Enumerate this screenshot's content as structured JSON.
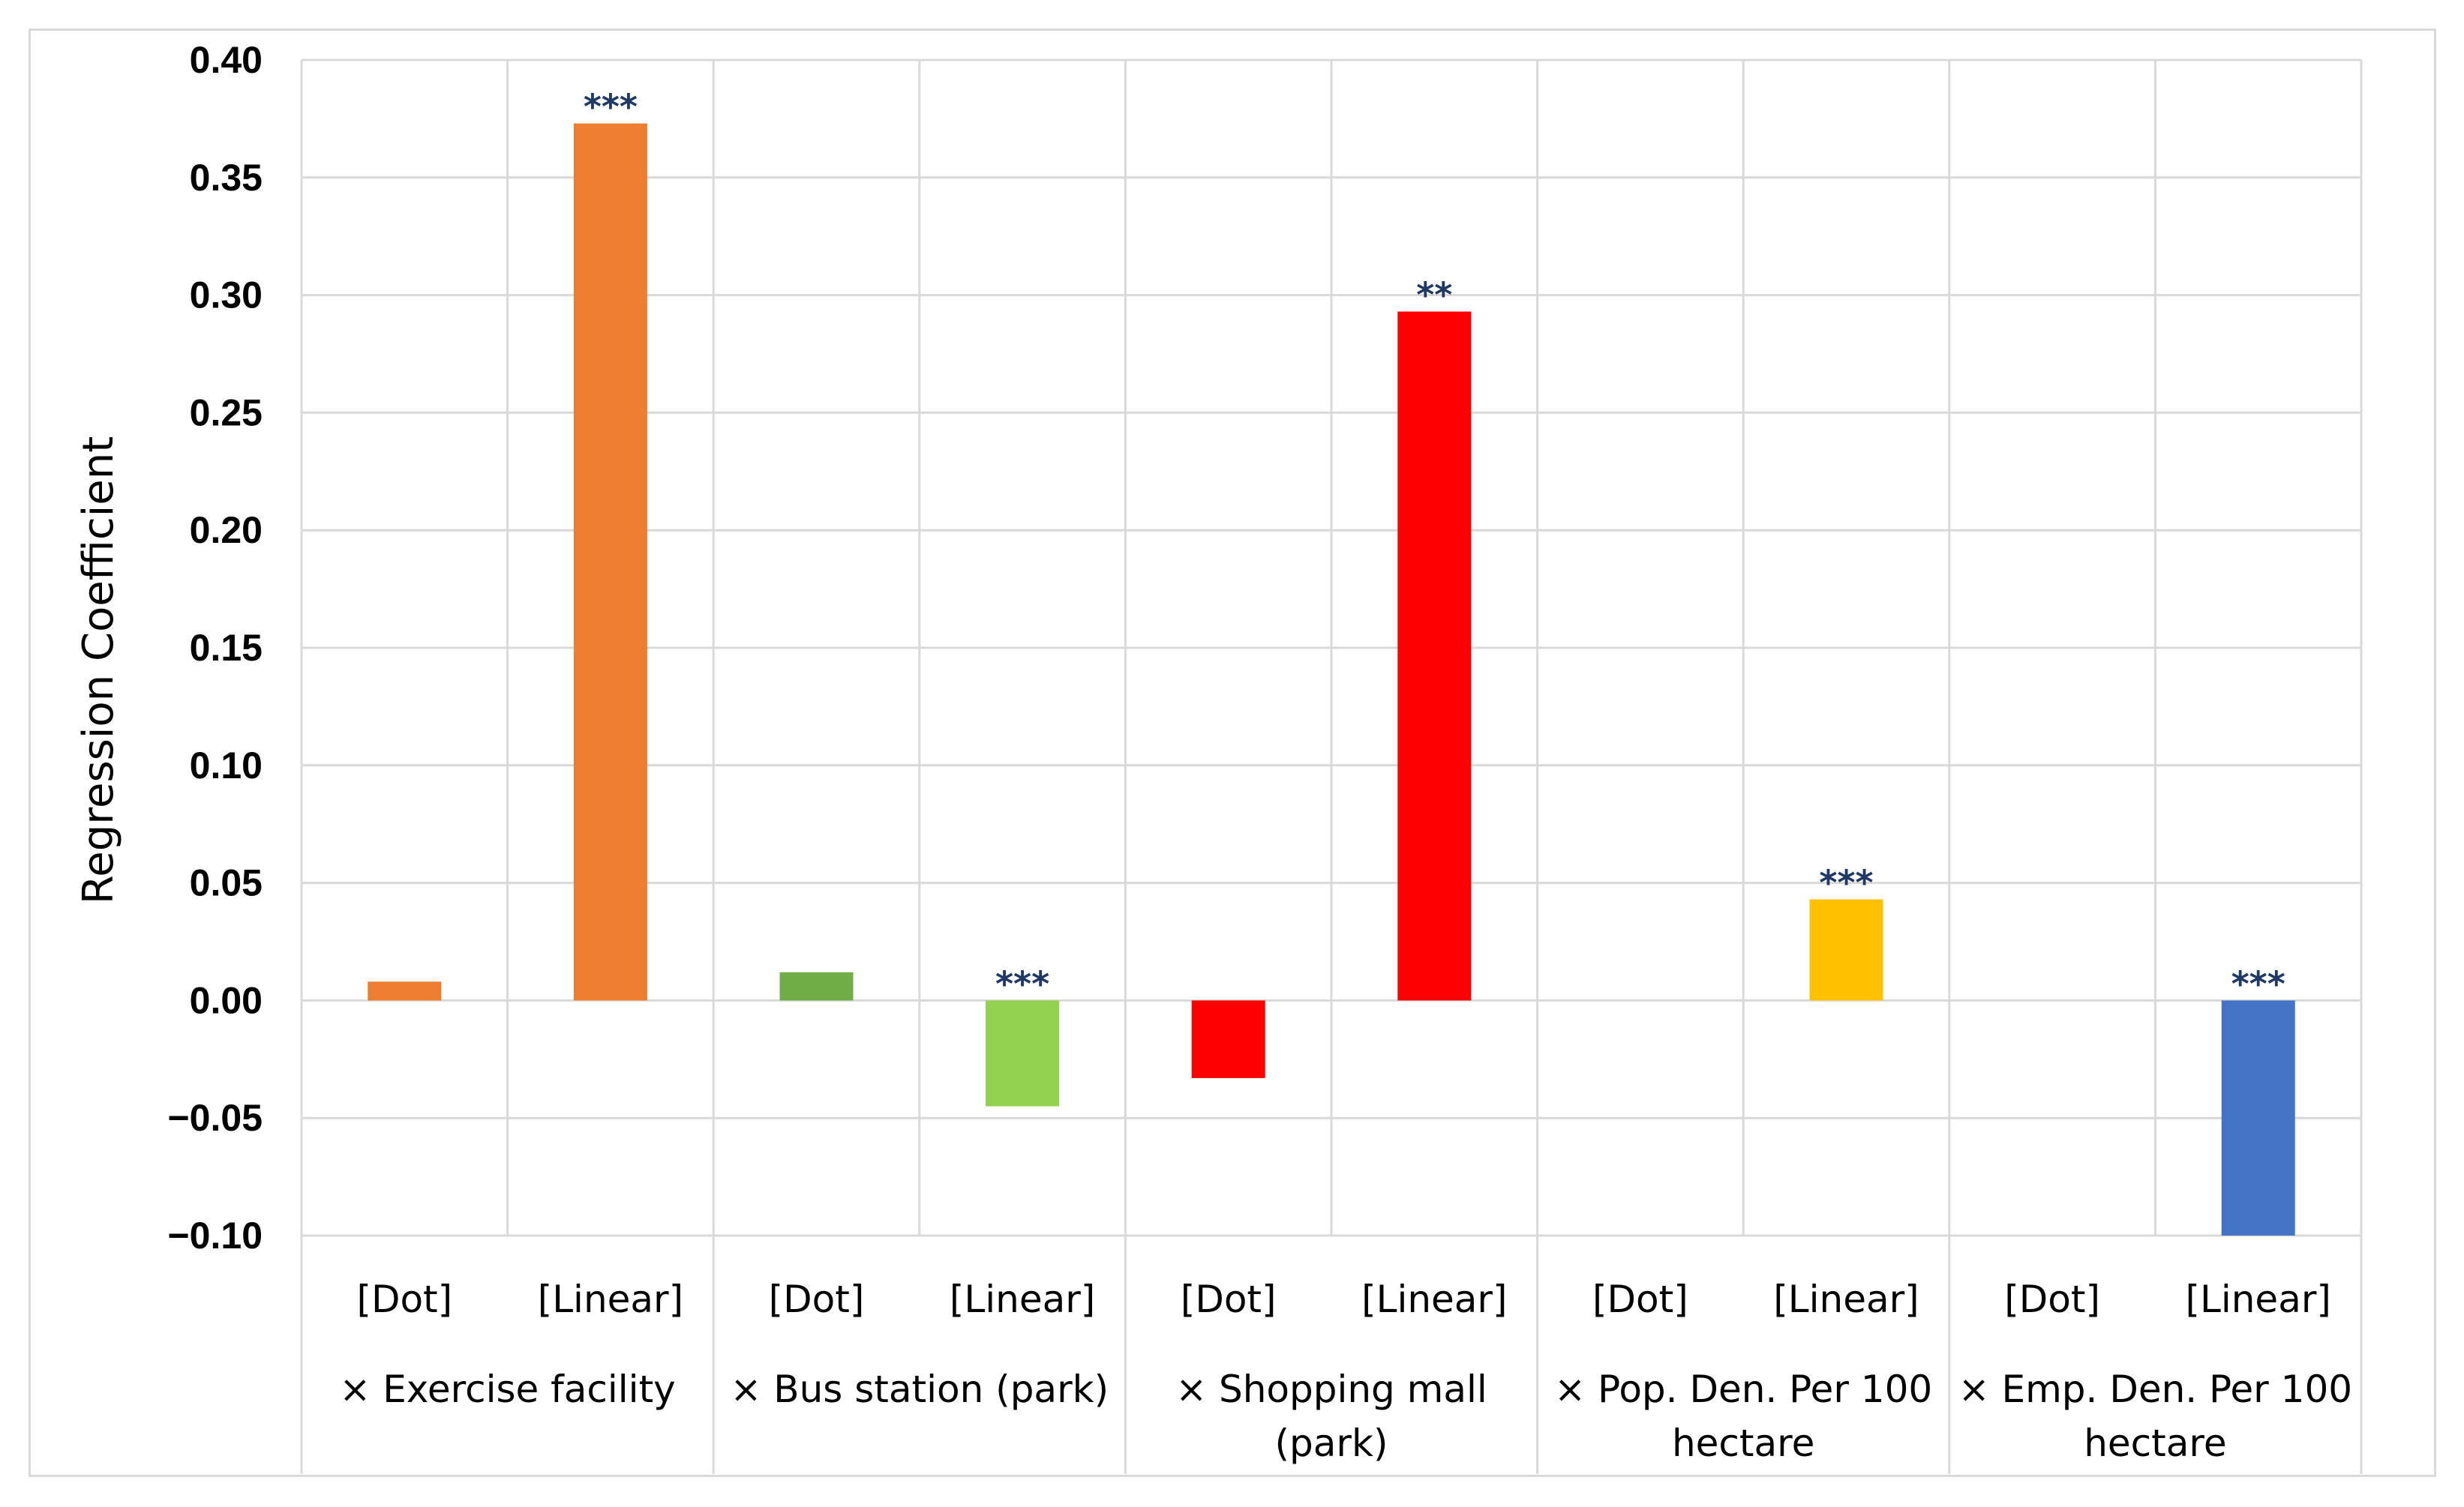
{
  "chart_data": {
    "type": "bar",
    "title": "",
    "ylabel": "Regression Coefficient",
    "xlabel": "",
    "ylim": [
      -0.1,
      0.4
    ],
    "yticks": [
      0.4,
      0.35,
      0.3,
      0.25,
      0.2,
      0.15,
      0.1,
      0.05,
      0.0,
      -0.05,
      -0.1
    ],
    "ytick_labels": [
      "0.40",
      "0.35",
      "0.30",
      "0.25",
      "0.20",
      "0.15",
      "0.10",
      "0.05",
      "0.00",
      "−0.05",
      "−0.10"
    ],
    "grid": true,
    "groups": [
      {
        "label_lines": [
          "× Exercise facility"
        ],
        "bars": [
          {
            "category": "[Dot]",
            "value": 0.008,
            "color": "#ed7d31",
            "significance": ""
          },
          {
            "category": "[Linear]",
            "value": 0.373,
            "color": "#ed7d31",
            "significance": "***"
          }
        ]
      },
      {
        "label_lines": [
          "× Bus station (park)"
        ],
        "bars": [
          {
            "category": "[Dot]",
            "value": 0.012,
            "color": "#70ad47",
            "significance": ""
          },
          {
            "category": "[Linear]",
            "value": -0.045,
            "color": "#92d050",
            "significance": "***"
          }
        ]
      },
      {
        "label_lines": [
          "× Shopping mall",
          "(park)"
        ],
        "bars": [
          {
            "category": "[Dot]",
            "value": -0.033,
            "color": "#ff0000",
            "significance": ""
          },
          {
            "category": "[Linear]",
            "value": 0.293,
            "color": "#ff0000",
            "significance": "**"
          }
        ]
      },
      {
        "label_lines": [
          "× Pop. Den. Per 100",
          "hectare"
        ],
        "bars": [
          {
            "category": "[Dot]",
            "value": 0.0,
            "color": "#ffc000",
            "significance": ""
          },
          {
            "category": "[Linear]",
            "value": 0.043,
            "color": "#ffc000",
            "significance": "***"
          }
        ]
      },
      {
        "label_lines": [
          "× Emp. Den. Per 100",
          "hectare"
        ],
        "bars": [
          {
            "category": "[Dot]",
            "value": 0.0,
            "color": "#4472c4",
            "significance": ""
          },
          {
            "category": "[Linear]",
            "value": -0.1,
            "color": "#4472c4",
            "significance": "***"
          }
        ]
      }
    ]
  }
}
